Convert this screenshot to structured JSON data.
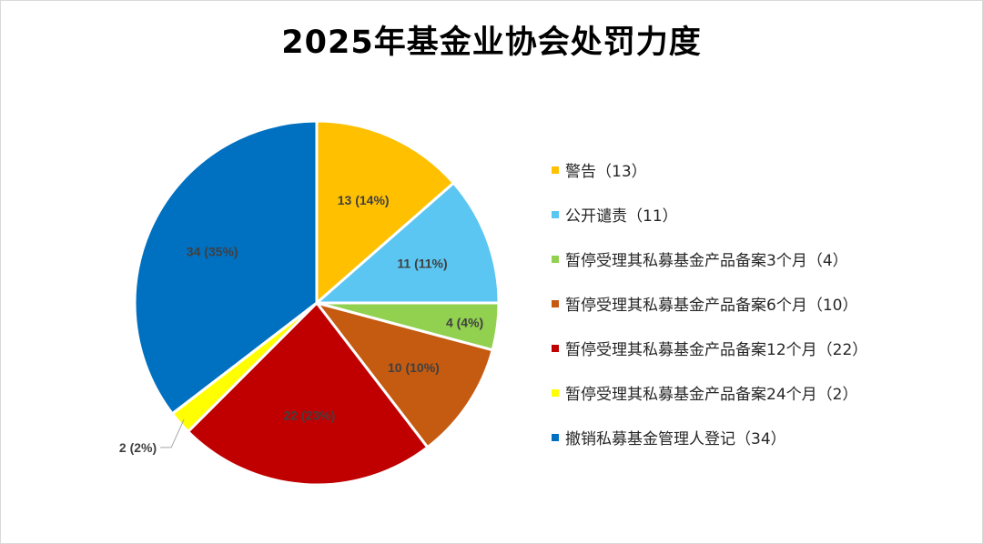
{
  "chart_data": {
    "type": "pie",
    "title": "2025年基金业协会处罚力度",
    "slices": [
      {
        "name": "警告",
        "value": 13,
        "percent": 14,
        "color": "#FFC000",
        "legend": "警告（13）",
        "data_label": "13 (14%)"
      },
      {
        "name": "公开谴责",
        "value": 11,
        "percent": 11,
        "color": "#5BC6F2",
        "legend": "公开谴责（11）",
        "data_label": "11 (11%)"
      },
      {
        "name": "暂停受理其私募基金产品备案3个月",
        "value": 4,
        "percent": 4,
        "color": "#92D050",
        "legend": "暂停受理其私募基金产品备案3个月（4）",
        "data_label": "4 (4%)"
      },
      {
        "name": "暂停受理其私募基金产品备案6个月",
        "value": 10,
        "percent": 10,
        "color": "#C55A11",
        "legend": "暂停受理其私募基金产品备案6个月（10）",
        "data_label": "10 (10%)"
      },
      {
        "name": "暂停受理其私募基金产品备案12个月",
        "value": 22,
        "percent": 23,
        "color": "#C00000",
        "legend": "暂停受理其私募基金产品备案12个月（22）",
        "data_label": "22 (23%)"
      },
      {
        "name": "暂停受理其私募基金产品备案24个月",
        "value": 2,
        "percent": 2,
        "color": "#FFFF00",
        "legend": "暂停受理其私募基金产品备案24个月（2）",
        "data_label": "2 (2%)"
      },
      {
        "name": "撤销私募基金管理人登记",
        "value": 34,
        "percent": 35,
        "color": "#0070C0",
        "legend": "撤销私募基金管理人登记（34）",
        "data_label": "34 (35%)"
      }
    ],
    "legend_position": "right"
  }
}
